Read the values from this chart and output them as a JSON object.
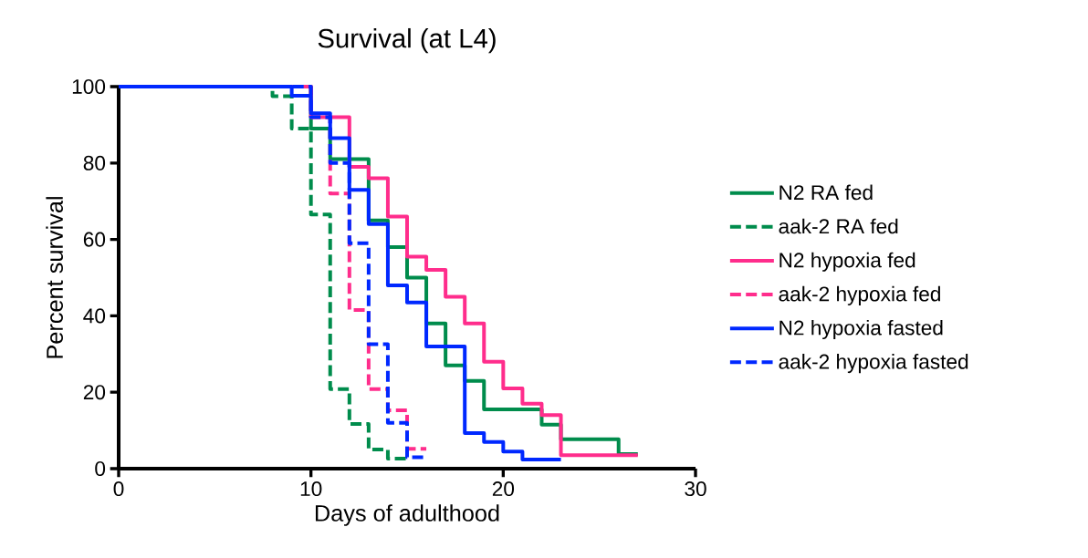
{
  "chart_data": {
    "type": "step",
    "title": "Survival (at L4)",
    "xlabel": "Days of adulthood",
    "ylabel": "Percent survival",
    "xlim": [
      0,
      30
    ],
    "xticks": [
      0,
      10,
      20,
      30
    ],
    "ylim": [
      0,
      100
    ],
    "yticks": [
      0,
      20,
      40,
      60,
      80,
      100
    ],
    "grid": false,
    "legend": "right",
    "marker": "none",
    "series": [
      {
        "name": "N2 RA fed",
        "color": "#008c4c",
        "line_style": "solid",
        "x": [
          0,
          10,
          11,
          13,
          14,
          15,
          16,
          17,
          18,
          19,
          22,
          23,
          26,
          27
        ],
        "values": [
          100,
          89,
          81,
          65,
          58,
          50,
          38,
          27,
          23,
          15.5,
          11.5,
          7.7,
          3.8,
          3.8
        ]
      },
      {
        "name": "aak-2 RA fed",
        "color": "#008c4c",
        "line_style": "dashed",
        "x": [
          0,
          8,
          9,
          10,
          11,
          12,
          13,
          14,
          15
        ],
        "values": [
          100,
          97.5,
          89,
          66.5,
          20.8,
          11.7,
          5,
          2.6,
          2.6
        ]
      },
      {
        "name": "N2 hypoxia fed",
        "color": "#ff2d8c",
        "line_style": "solid",
        "x": [
          0,
          10,
          12,
          13,
          14,
          15,
          16,
          17,
          18,
          19,
          20,
          21,
          22,
          23,
          27
        ],
        "values": [
          100,
          92,
          79,
          76,
          66,
          55.5,
          52,
          45,
          38,
          28,
          21,
          17,
          14,
          3.5,
          3.5
        ]
      },
      {
        "name": "aak-2 hypoxia fed",
        "color": "#ff2d8c",
        "line_style": "dashed",
        "x": [
          0,
          10,
          11,
          12,
          13,
          14,
          15,
          16
        ],
        "values": [
          100,
          92,
          72,
          41.5,
          20.8,
          15.3,
          5.2,
          5.2
        ]
      },
      {
        "name": "N2 hypoxia fasted",
        "color": "#0028ff",
        "line_style": "solid",
        "x": [
          0,
          9,
          10,
          11,
          12,
          13,
          14,
          15,
          16,
          18,
          19,
          20,
          21,
          23
        ],
        "values": [
          100,
          97.6,
          93,
          86.5,
          73,
          64,
          48,
          43.5,
          32,
          9.3,
          7,
          4.5,
          2.4,
          2.4
        ]
      },
      {
        "name": "aak-2 hypoxia fasted",
        "color": "#0028ff",
        "line_style": "dashed",
        "x": [
          0,
          10,
          11,
          12,
          13,
          14,
          15,
          16
        ],
        "values": [
          100,
          92,
          80,
          59,
          32.6,
          12,
          3,
          3
        ]
      }
    ]
  }
}
